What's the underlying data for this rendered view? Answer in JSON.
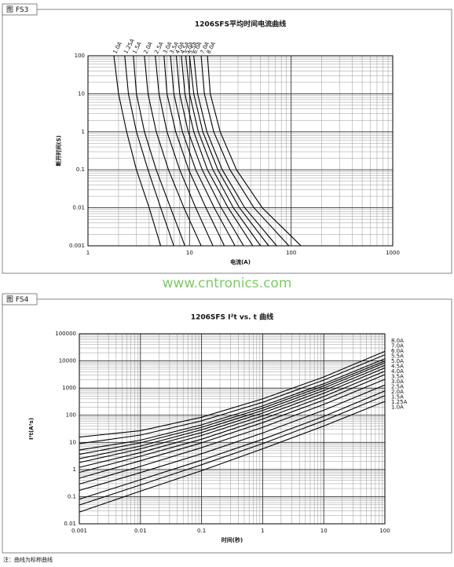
{
  "panels": [
    {
      "tag": "图 FS3"
    },
    {
      "tag": "图 FS4"
    }
  ],
  "watermark": "www.cntronics.com",
  "note": "注：曲线为标称曲线",
  "chart_data": [
    {
      "type": "line",
      "title": "1206SFS平均时间电流曲线",
      "x_label": "电流(A)",
      "y_label": "断开时间(S)",
      "log_x": true,
      "log_y": true,
      "grid": true,
      "color": "#000000",
      "label_position": "top",
      "xlim": [
        1,
        1000
      ],
      "ylim": [
        0.001,
        100
      ],
      "xticks": [
        1,
        10,
        100,
        1000
      ],
      "yticks": [
        0.001,
        0.01,
        0.1,
        1,
        10,
        100
      ],
      "series": [
        {
          "name": "1.0A",
          "x": [
            1.8,
            2.0,
            2.4,
            3.0,
            4.0,
            5.2
          ],
          "values": [
            100,
            10,
            1,
            0.1,
            0.01,
            0.001
          ]
        },
        {
          "name": "1.25A",
          "x": [
            2.3,
            2.5,
            3.0,
            3.9,
            5.2,
            7.0
          ],
          "values": [
            100,
            10,
            1,
            0.1,
            0.01,
            0.001
          ]
        },
        {
          "name": "1.5A",
          "x": [
            2.8,
            3.0,
            3.6,
            4.7,
            6.5,
            9.0
          ],
          "values": [
            100,
            10,
            1,
            0.1,
            0.01,
            0.001
          ]
        },
        {
          "name": "2.0A",
          "x": [
            3.6,
            3.9,
            4.7,
            6.2,
            8.8,
            13
          ],
          "values": [
            100,
            10,
            1,
            0.1,
            0.01,
            0.001
          ]
        },
        {
          "name": "2.5A",
          "x": [
            4.6,
            5.0,
            6.0,
            8.0,
            11.5,
            17
          ],
          "values": [
            100,
            10,
            1,
            0.1,
            0.01,
            0.001
          ]
        },
        {
          "name": "3.0A",
          "x": [
            5.6,
            6.0,
            7.3,
            9.8,
            14.5,
            22
          ],
          "values": [
            100,
            10,
            1,
            0.1,
            0.01,
            0.001
          ]
        },
        {
          "name": "3.5A",
          "x": [
            6.5,
            7.0,
            8.5,
            11.5,
            17.5,
            28
          ],
          "values": [
            100,
            10,
            1,
            0.1,
            0.01,
            0.001
          ]
        },
        {
          "name": "4.0A",
          "x": [
            7.4,
            8.0,
            9.7,
            13.3,
            20.5,
            34
          ],
          "values": [
            100,
            10,
            1,
            0.1,
            0.01,
            0.001
          ]
        },
        {
          "name": "4.5A",
          "x": [
            8.3,
            9.0,
            11,
            15,
            24,
            42
          ],
          "values": [
            100,
            10,
            1,
            0.1,
            0.01,
            0.001
          ]
        },
        {
          "name": "5.0A",
          "x": [
            9.2,
            10,
            12.2,
            17,
            27,
            50
          ],
          "values": [
            100,
            10,
            1,
            0.1,
            0.01,
            0.001
          ]
        },
        {
          "name": "5.5A",
          "x": [
            10,
            11,
            13.5,
            19,
            31,
            60
          ],
          "values": [
            100,
            10,
            1,
            0.1,
            0.01,
            0.001
          ]
        },
        {
          "name": "6.0A",
          "x": [
            11,
            12,
            14.8,
            21,
            35,
            72
          ],
          "values": [
            100,
            10,
            1,
            0.1,
            0.01,
            0.001
          ]
        },
        {
          "name": "7.0A",
          "x": [
            13,
            14,
            17.3,
            25,
            43,
            95
          ],
          "values": [
            100,
            10,
            1,
            0.1,
            0.01,
            0.001
          ]
        },
        {
          "name": "8.0A",
          "x": [
            15,
            16,
            20,
            29,
            52,
            125
          ],
          "values": [
            100,
            10,
            1,
            0.1,
            0.01,
            0.001
          ]
        }
      ]
    },
    {
      "type": "line",
      "title": "1206SFS I²t vs. t 曲线",
      "x_label": "时间(秒)",
      "y_label": "I²t(A²s)",
      "log_x": true,
      "log_y": true,
      "grid": true,
      "color": "#000000",
      "label_position": "right",
      "xlim": [
        0.001,
        100
      ],
      "ylim": [
        0.01,
        100000
      ],
      "xticks": [
        0.001,
        0.01,
        0.1,
        1,
        10,
        100
      ],
      "yticks": [
        0.01,
        0.1,
        1,
        10,
        100,
        1000,
        10000,
        100000
      ],
      "series": [
        {
          "name": "8.0A",
          "x": [
            0.001,
            0.01,
            0.1,
            1,
            10,
            100
          ],
          "values": [
            15.6,
            27,
            84,
            400,
            2560,
            22500
          ]
        },
        {
          "name": "7.0A",
          "x": [
            0.001,
            0.01,
            0.1,
            1,
            10,
            100
          ],
          "values": [
            9,
            18.5,
            62,
            299,
            1960,
            16900
          ]
        },
        {
          "name": "6.0A",
          "x": [
            0.001,
            0.01,
            0.1,
            1,
            10,
            100
          ],
          "values": [
            5.2,
            12,
            44,
            219,
            1440,
            12100
          ]
        },
        {
          "name": "5.5A",
          "x": [
            0.001,
            0.01,
            0.1,
            1,
            10,
            100
          ],
          "values": [
            3.6,
            9.6,
            36,
            182,
            1210,
            10000
          ]
        },
        {
          "name": "5.0A",
          "x": [
            0.001,
            0.01,
            0.1,
            1,
            10,
            100
          ],
          "values": [
            2.5,
            7.3,
            29,
            149,
            1000,
            8500
          ]
        },
        {
          "name": "4.5A",
          "x": [
            0.001,
            0.01,
            0.1,
            1,
            10,
            100
          ],
          "values": [
            1.8,
            5.8,
            23,
            121,
            810,
            6900
          ]
        },
        {
          "name": "4.0A",
          "x": [
            0.001,
            0.01,
            0.1,
            1,
            10,
            100
          ],
          "values": [
            1.2,
            4.2,
            18,
            94,
            640,
            5500
          ]
        },
        {
          "name": "3.5A",
          "x": [
            0.001,
            0.01,
            0.1,
            1,
            10,
            100
          ],
          "values": [
            0.78,
            3.1,
            13,
            72,
            490,
            4200
          ]
        },
        {
          "name": "3.0A",
          "x": [
            0.001,
            0.01,
            0.1,
            1,
            10,
            100
          ],
          "values": [
            0.48,
            2.1,
            9.6,
            53,
            360,
            3140
          ]
        },
        {
          "name": "2.5A",
          "x": [
            0.001,
            0.01,
            0.1,
            1,
            10,
            100
          ],
          "values": [
            0.29,
            1.3,
            6.4,
            36,
            250,
            2100
          ]
        },
        {
          "name": "2.0A",
          "x": [
            0.001,
            0.01,
            0.1,
            1,
            10,
            100
          ],
          "values": [
            0.17,
            0.77,
            3.8,
            22,
            152,
            1300
          ]
        },
        {
          "name": "1.5A",
          "x": [
            0.001,
            0.01,
            0.1,
            1,
            10,
            100
          ],
          "values": [
            0.081,
            0.42,
            2.2,
            13,
            90,
            784
          ]
        },
        {
          "name": "1.25A",
          "x": [
            0.001,
            0.01,
            0.1,
            1,
            10,
            100
          ],
          "values": [
            0.049,
            0.27,
            1.5,
            9,
            63,
            530
          ]
        },
        {
          "name": "1.0A",
          "x": [
            0.001,
            0.01,
            0.1,
            1,
            10,
            100
          ],
          "values": [
            0.027,
            0.16,
            0.9,
            5.8,
            40,
            324
          ]
        }
      ]
    }
  ]
}
